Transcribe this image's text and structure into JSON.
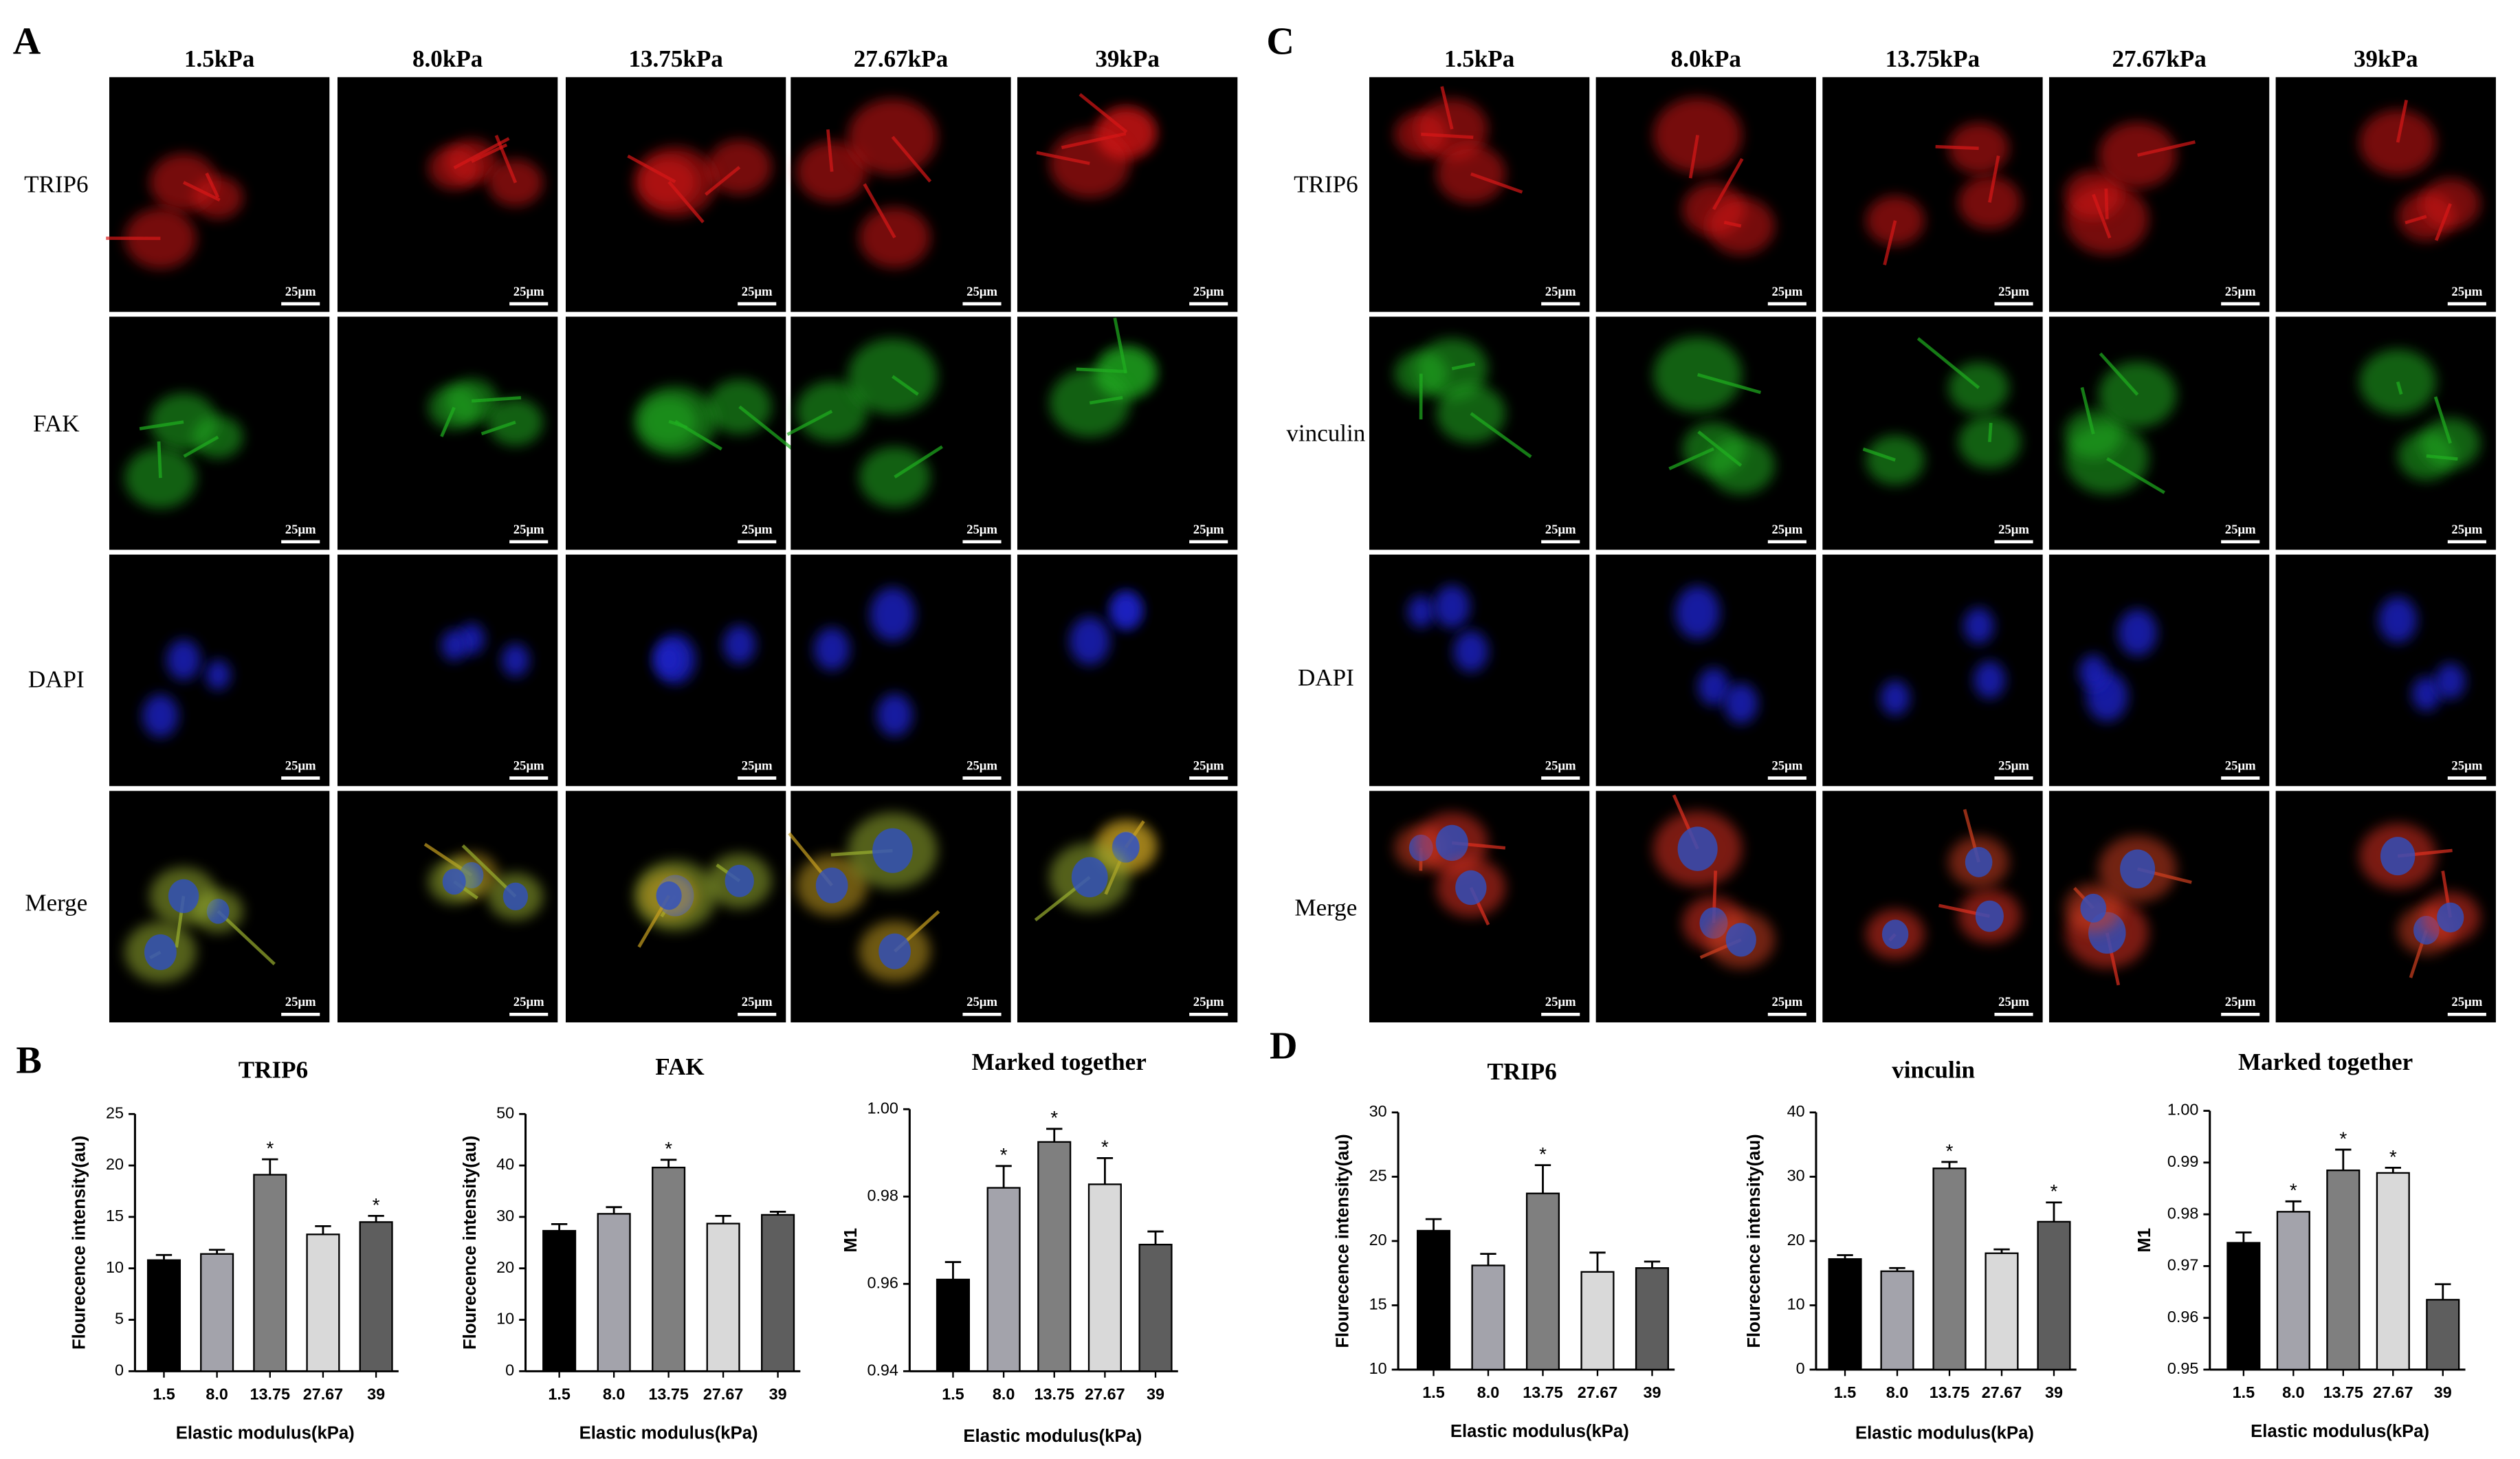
{
  "panel_A": {
    "label": "A",
    "columns": [
      "1.5kPa",
      "8.0kPa",
      "13.75kPa",
      "27.67kPa",
      "39kPa"
    ],
    "rows": [
      "TRIP6",
      "FAK",
      "DAPI",
      "Merge"
    ],
    "scale_bar": "25μm"
  },
  "panel_C": {
    "label": "C",
    "columns": [
      "1.5kPa",
      "8.0kPa",
      "13.75kPa",
      "27.67kPa",
      "39kPa"
    ],
    "rows": [
      "TRIP6",
      "vinculin",
      "DAPI",
      "Merge"
    ],
    "scale_bar": "25μm"
  },
  "panel_B": {
    "label": "B"
  },
  "panel_D": {
    "label": "D"
  },
  "chart_data": [
    {
      "type": "bar",
      "title": "TRIP6",
      "x_label": "Elastic modulus(kPa)",
      "y_label": "Flourecence intensity(au)",
      "categories": [
        "1.5",
        "8.0",
        "13.75",
        "27.67",
        "39"
      ],
      "values": [
        10.8,
        11.4,
        19.1,
        13.3,
        14.5
      ],
      "errors": [
        0.5,
        0.4,
        1.5,
        0.8,
        0.6
      ],
      "significance": [
        null,
        null,
        "*",
        null,
        "*"
      ],
      "colors": [
        "#000000",
        "#a3a3ab",
        "#7f7f7f",
        "#d9d9d9",
        "#5e5e5e"
      ],
      "ylim": [
        0,
        25
      ],
      "yticks": [
        0,
        5,
        10,
        15,
        20,
        25
      ]
    },
    {
      "type": "bar",
      "title": "FAK",
      "x_label": "Elastic modulus(kPa)",
      "y_label": "Flourecence intensity(au)",
      "categories": [
        "1.5",
        "8.0",
        "13.75",
        "27.67",
        "39"
      ],
      "values": [
        27.3,
        30.6,
        39.6,
        28.7,
        30.4
      ],
      "errors": [
        1.3,
        1.3,
        1.5,
        1.5,
        0.6
      ],
      "significance": [
        null,
        null,
        "*",
        null,
        null
      ],
      "colors": [
        "#000000",
        "#a3a3ab",
        "#7f7f7f",
        "#d9d9d9",
        "#5e5e5e"
      ],
      "ylim": [
        0,
        50
      ],
      "yticks": [
        0,
        10,
        20,
        30,
        40,
        50
      ]
    },
    {
      "type": "bar",
      "title": "Marked together",
      "x_label": "Elastic modulus(kPa)",
      "y_label": "M1",
      "categories": [
        "1.5",
        "8.0",
        "13.75",
        "27.67",
        "39"
      ],
      "values": [
        0.961,
        0.982,
        0.9925,
        0.9828,
        0.969
      ],
      "errors": [
        0.004,
        0.005,
        0.003,
        0.006,
        0.003
      ],
      "significance": [
        null,
        "*",
        "*",
        "*",
        null
      ],
      "colors": [
        "#000000",
        "#a3a3ab",
        "#7f7f7f",
        "#d9d9d9",
        "#5e5e5e"
      ],
      "ylim": [
        0.94,
        1
      ],
      "yticks": [
        0.94,
        0.96,
        0.98,
        {
          "value": 1,
          "label": "1.00"
        }
      ]
    },
    {
      "type": "bar",
      "title": "TRIP6",
      "x_label": "Elastic modulus(kPa)",
      "y_label": "Flourecence intensity(au)",
      "categories": [
        "1.5",
        "8.0",
        "13.75",
        "27.67",
        "39"
      ],
      "values": [
        20.8,
        18.1,
        23.7,
        17.6,
        17.9
      ],
      "errors": [
        0.9,
        0.9,
        2.2,
        1.5,
        0.5
      ],
      "significance": [
        null,
        null,
        "*",
        null,
        null
      ],
      "colors": [
        "#000000",
        "#a3a3ab",
        "#7f7f7f",
        "#d9d9d9",
        "#5e5e5e"
      ],
      "ylim": [
        10,
        30
      ],
      "yticks": [
        10,
        15,
        20,
        25,
        30
      ]
    },
    {
      "type": "bar",
      "title": "vinculin",
      "x_label": "Elastic modulus(kPa)",
      "y_label": "Flourecence intensity(au)",
      "categories": [
        "1.5",
        "8.0",
        "13.75",
        "27.67",
        "39"
      ],
      "values": [
        17.2,
        15.3,
        31.3,
        18.1,
        23
      ],
      "errors": [
        0.6,
        0.5,
        1,
        0.6,
        3
      ],
      "significance": [
        null,
        null,
        "*",
        null,
        "*"
      ],
      "colors": [
        "#000000",
        "#a3a3ab",
        "#7f7f7f",
        "#d9d9d9",
        "#5e5e5e"
      ],
      "ylim": [
        0,
        40
      ],
      "yticks": [
        0,
        10,
        20,
        30,
        40
      ]
    },
    {
      "type": "bar",
      "title": "Marked together",
      "x_label": "Elastic modulus(kPa)",
      "y_label": "M1",
      "categories": [
        "1.5",
        "8.0",
        "13.75",
        "27.67",
        "39"
      ],
      "values": [
        0.9745,
        0.9805,
        0.9885,
        0.988,
        0.9635
      ],
      "errors": [
        0.002,
        0.002,
        0.004,
        0.001,
        0.003
      ],
      "significance": [
        null,
        "*",
        "*",
        "*",
        null
      ],
      "colors": [
        "#000000",
        "#a3a3ab",
        "#7f7f7f",
        "#d9d9d9",
        "#5e5e5e"
      ],
      "ylim": [
        0.95,
        1
      ],
      "yticks": [
        0.95,
        0.96,
        0.97,
        0.98,
        0.99,
        {
          "value": 1,
          "label": "1.00"
        }
      ]
    }
  ]
}
